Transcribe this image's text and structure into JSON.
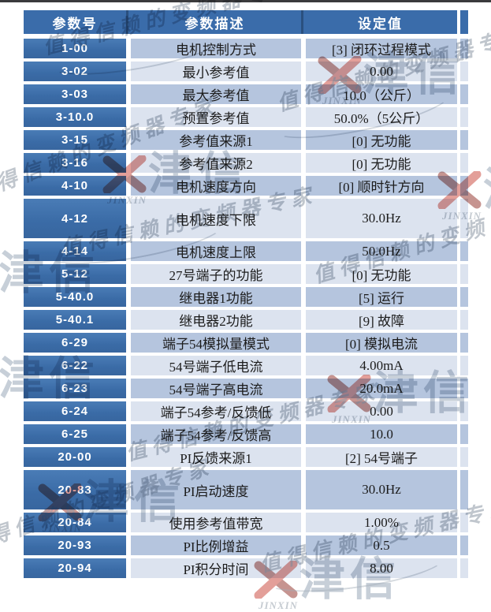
{
  "brand": {
    "cn": "津信",
    "en": "JINXIN",
    "slogan": "值得信赖的变频器专家"
  },
  "colors": {
    "header_bg": "#3a6caa",
    "param_col_bg": "#3e70ac",
    "row_medium": "#b5c5de",
    "row_light": "#dce3ef",
    "text_dark": "#1c1c1c",
    "logo_red": "#c43a2f"
  },
  "table": {
    "headers": {
      "param": "参数号",
      "description": "参数描述",
      "value": "设定值"
    },
    "rows": [
      {
        "param": "1-00",
        "description": "电机控制方式",
        "value": "[3]  闭环过程模式"
      },
      {
        "param": "3-02",
        "description": "最小参考值",
        "value": "0.00"
      },
      {
        "param": "3-03",
        "description": "最大参考值",
        "value": "10.0（公斤）"
      },
      {
        "param": "3-10.0",
        "description": "预置参考值",
        "value": "50.0%（5公斤）"
      },
      {
        "param": "3-15",
        "description": "参考值来源1",
        "value": "[0]  无功能"
      },
      {
        "param": "3-16",
        "description": "参考值来源2",
        "value": "[0]  无功能"
      },
      {
        "param": "4-10",
        "description": "电机速度方向",
        "value": "[0]  顺时针方向"
      },
      {
        "param": "4-12",
        "description": "电机速度下限",
        "value": "30.0Hz"
      },
      {
        "param": "4-14",
        "description": "电机速度上限",
        "value": "50.0Hz"
      },
      {
        "param": "5-12",
        "description": "27号端子的功能",
        "value": "[0]  无功能"
      },
      {
        "param": "5-40.0",
        "description": "继电器1功能",
        "value": "[5]  运行"
      },
      {
        "param": "5-40.1",
        "description": "继电器2功能",
        "value": "[9]  故障"
      },
      {
        "param": "6-29",
        "description": "端子54模拟量模式",
        "value": "[0]  模拟电流"
      },
      {
        "param": "6-22",
        "description": "54号端子低电流",
        "value": "4.00mA"
      },
      {
        "param": "6-23",
        "description": "54号端子高电流",
        "value": "20.0mA"
      },
      {
        "param": "6-24",
        "description": "端子54参考/反馈低",
        "value": "0.00"
      },
      {
        "param": "6-25",
        "description": "端子54参考/反馈高",
        "value": "10.0"
      },
      {
        "param": "20-00",
        "description": "PI反馈来源1",
        "value": "[2] 54号端子"
      },
      {
        "param": "20-83",
        "description": "PI启动速度",
        "value": "30.0Hz"
      },
      {
        "param": "20-84",
        "description": "使用参考值带宽",
        "value": "1.00%"
      },
      {
        "param": "20-93",
        "description": "PI比例增益",
        "value": "0.5"
      },
      {
        "param": "20-94",
        "description": "PI积分时间",
        "value": "8.00"
      }
    ]
  }
}
